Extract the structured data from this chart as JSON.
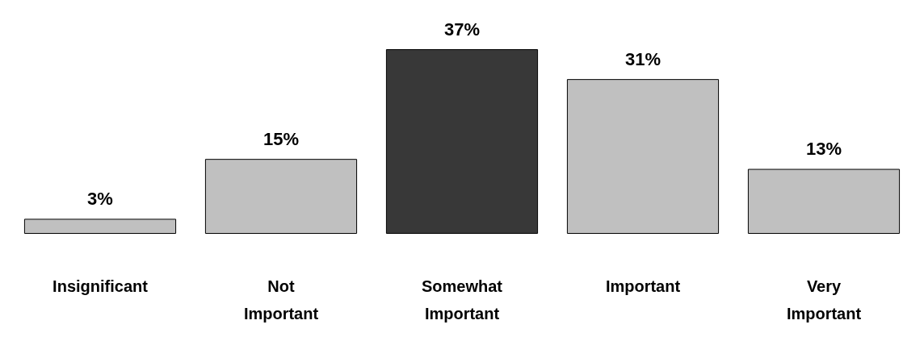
{
  "chart_data": {
    "type": "bar",
    "categories": [
      "Insignificant",
      "Not Important",
      "Somewhat Important",
      "Important",
      "Very Important"
    ],
    "values": [
      3,
      15,
      37,
      31,
      13
    ],
    "colors": [
      "#c0c0c0",
      "#c0c0c0",
      "#383838",
      "#c0c0c0",
      "#c0c0c0"
    ],
    "value_labels": [
      "3%",
      "15%",
      "37%",
      "31%",
      "13%"
    ],
    "grid": false
  }
}
